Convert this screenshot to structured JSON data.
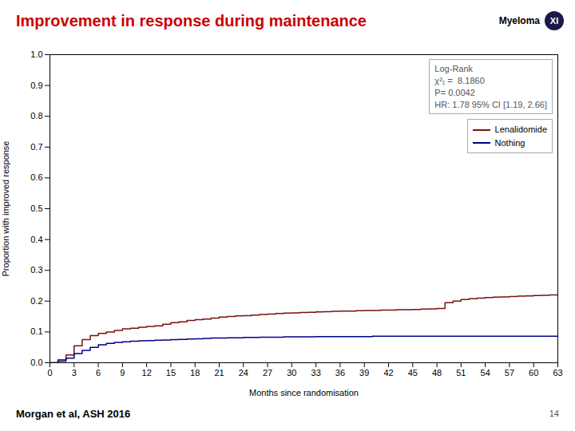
{
  "chart_data": {
    "type": "step",
    "title": "Improvement in response during maintenance",
    "title_color": "#cc0000",
    "xlabel": "Months since randomisation",
    "ylabel": "Proportion with improved response",
    "xlim": [
      0,
      63
    ],
    "ylim": [
      0.0,
      1.0
    ],
    "xticks": [
      0,
      3,
      6,
      9,
      12,
      15,
      18,
      21,
      24,
      27,
      30,
      33,
      36,
      39,
      42,
      45,
      48,
      51,
      54,
      57,
      60,
      63
    ],
    "yticks": [
      {
        "value": 0.0,
        "label": "0.0"
      },
      0.1,
      0.2,
      0.3,
      0.4,
      0.5,
      0.6,
      0.7,
      0.8,
      0.9,
      {
        "value": 1.0,
        "label": "1.0"
      }
    ],
    "grid": false,
    "legend": "upper right",
    "annotations": [
      "Log-Rank\nχ²₁ =  8.1860\nP= 0.0042\nHR: 1.78 95% CI [1.19, 2.66]",
      "Morgan et al, ASH 2016",
      "14",
      "Myeloma",
      "XI"
    ],
    "x": [
      0,
      1,
      2,
      3,
      4,
      5,
      6,
      7,
      8,
      9,
      10,
      11,
      12,
      13,
      14,
      15,
      16,
      17,
      18,
      19,
      20,
      21,
      22,
      23,
      24,
      25,
      26,
      27,
      28,
      29,
      30,
      31,
      32,
      33,
      34,
      35,
      36,
      37,
      38,
      39,
      40,
      41,
      42,
      43,
      44,
      45,
      46,
      47,
      48,
      49,
      50,
      51,
      52,
      53,
      54,
      55,
      56,
      57,
      58,
      59,
      60,
      61,
      62,
      63
    ],
    "series": [
      {
        "name": "Lenalidomide",
        "color": "#7b1010",
        "values": [
          0.0,
          0.01,
          0.025,
          0.055,
          0.075,
          0.088,
          0.095,
          0.1,
          0.105,
          0.11,
          0.112,
          0.115,
          0.118,
          0.12,
          0.125,
          0.13,
          0.133,
          0.137,
          0.14,
          0.142,
          0.145,
          0.148,
          0.15,
          0.152,
          0.153,
          0.155,
          0.157,
          0.158,
          0.16,
          0.161,
          0.162,
          0.163,
          0.164,
          0.165,
          0.166,
          0.167,
          0.168,
          0.168,
          0.169,
          0.17,
          0.17,
          0.171,
          0.171,
          0.172,
          0.172,
          0.173,
          0.174,
          0.175,
          0.176,
          0.195,
          0.2,
          0.205,
          0.208,
          0.21,
          0.212,
          0.213,
          0.214,
          0.215,
          0.216,
          0.217,
          0.218,
          0.219,
          0.22,
          0.22
        ]
      },
      {
        "name": "Nothing",
        "color": "#00008b",
        "values": [
          0.0,
          0.005,
          0.015,
          0.03,
          0.04,
          0.05,
          0.058,
          0.063,
          0.066,
          0.068,
          0.07,
          0.071,
          0.072,
          0.073,
          0.074,
          0.075,
          0.076,
          0.077,
          0.078,
          0.079,
          0.08,
          0.08,
          0.081,
          0.081,
          0.082,
          0.082,
          0.083,
          0.083,
          0.083,
          0.084,
          0.084,
          0.084,
          0.084,
          0.085,
          0.085,
          0.085,
          0.085,
          0.085,
          0.085,
          0.085,
          0.086,
          0.086,
          0.086,
          0.086,
          0.086,
          0.086,
          0.086,
          0.086,
          0.086,
          0.086,
          0.086,
          0.086,
          0.086,
          0.086,
          0.086,
          0.086,
          0.086,
          0.086,
          0.086,
          0.086,
          0.086,
          0.086,
          0.086,
          0.086
        ]
      }
    ]
  }
}
